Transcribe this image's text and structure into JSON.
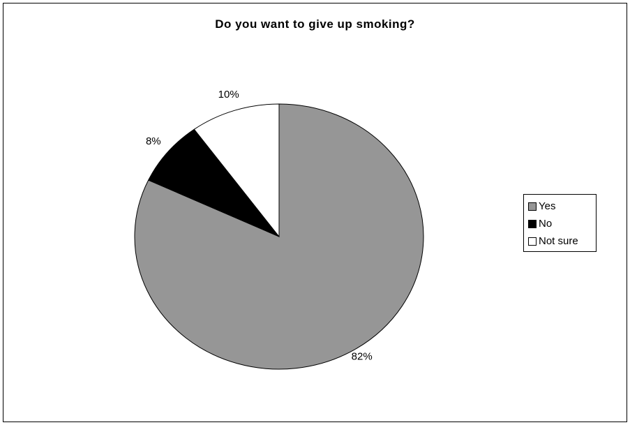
{
  "chart_data": {
    "type": "pie",
    "title": "Do you want to give up smoking?",
    "categories": [
      "Yes",
      "No",
      "Not sure"
    ],
    "values": [
      82,
      8,
      10
    ],
    "data_labels": [
      "82%",
      "8%",
      "10%"
    ],
    "colors": [
      "#969696",
      "#000000",
      "#ffffff"
    ],
    "start_angle_deg": 90,
    "direction": "clockwise",
    "legend": {
      "placement": "right",
      "items": [
        {
          "label": "Yes",
          "color": "#969696"
        },
        {
          "label": "No",
          "color": "#000000"
        },
        {
          "label": "Not sure",
          "color": "#ffffff"
        }
      ]
    }
  }
}
